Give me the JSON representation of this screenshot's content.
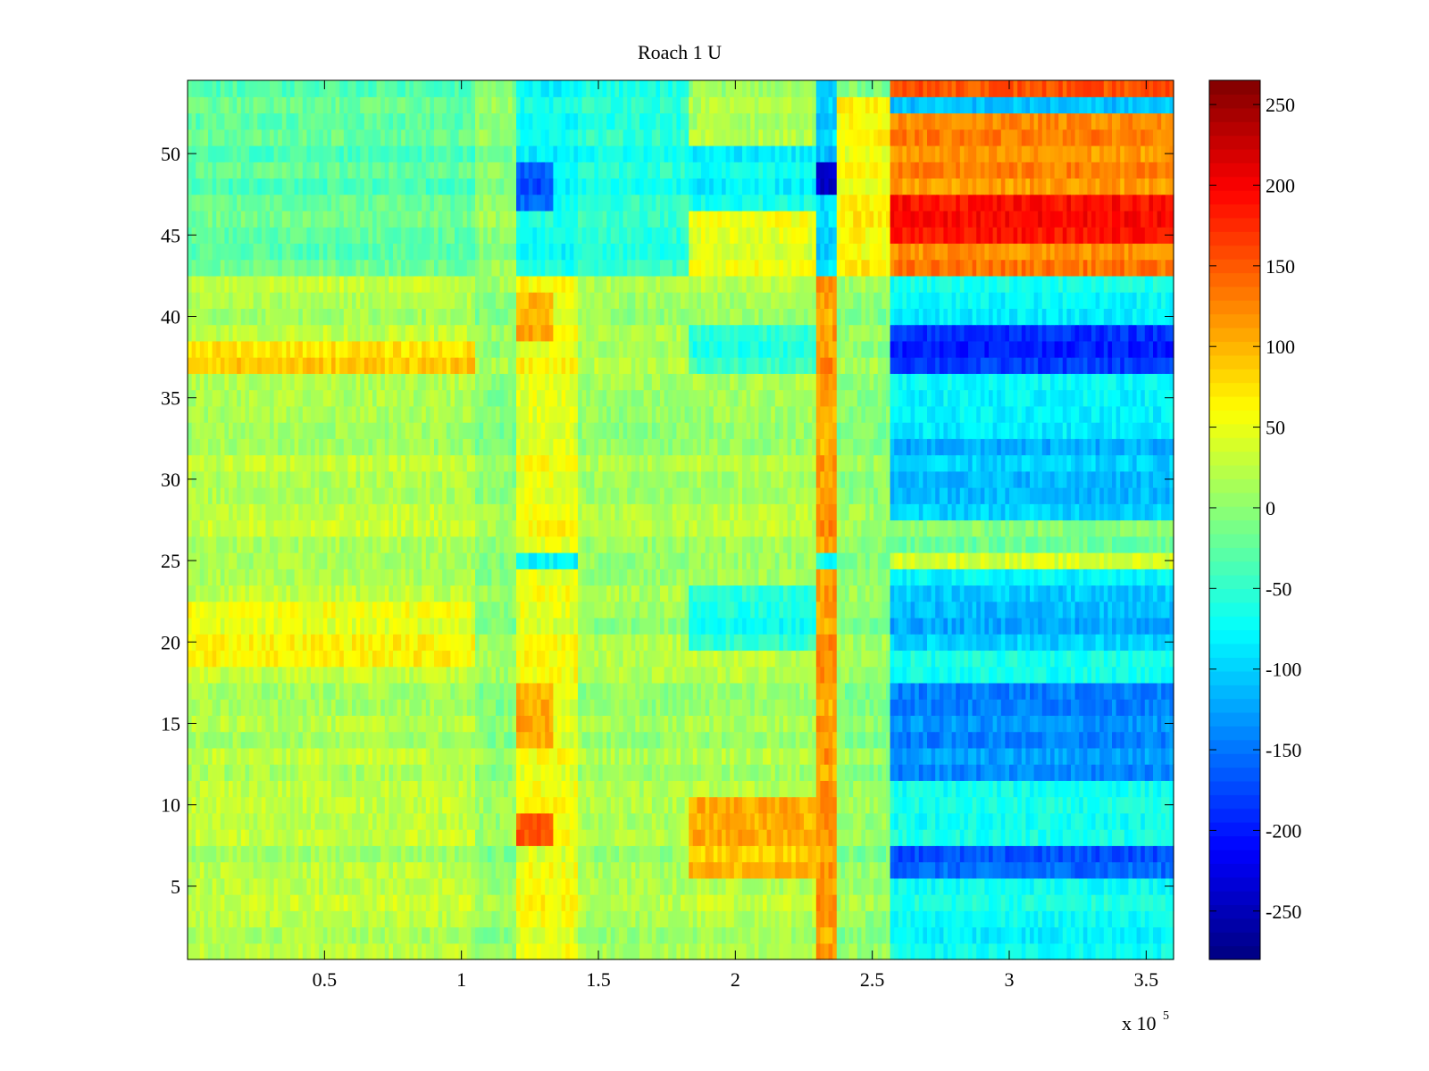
{
  "chart_data": {
    "type": "heatmap",
    "title": "Roach 1 U",
    "xlabel": "",
    "ylabel": "",
    "x_multiplier": "x 10",
    "x_multiplier_exponent": "5",
    "xlim": [
      0,
      3.6
    ],
    "ylim": [
      0.5,
      54.5
    ],
    "rows": 54,
    "x_ticks": [
      "0.5",
      "1",
      "1.5",
      "2",
      "2.5",
      "3",
      "3.5"
    ],
    "x_tick_values": [
      0.5,
      1,
      1.5,
      2,
      2.5,
      3,
      3.5
    ],
    "y_ticks": [
      "5",
      "10",
      "15",
      "20",
      "25",
      "30",
      "35",
      "40",
      "45",
      "50"
    ],
    "y_tick_values": [
      5,
      10,
      15,
      20,
      25,
      30,
      35,
      40,
      45,
      50
    ],
    "colorbar": {
      "range": [
        -280,
        265
      ],
      "ticks": [
        "-250",
        "-200",
        "-150",
        "-100",
        "-50",
        "0",
        "50",
        "100",
        "150",
        "200",
        "250"
      ],
      "tick_values": [
        -250,
        -200,
        -150,
        -100,
        -50,
        0,
        50,
        100,
        150,
        200,
        250
      ],
      "colormap": "jet"
    },
    "segments": [
      {
        "x": [
          0,
          1.05
        ],
        "base": 20
      },
      {
        "x": [
          1.05,
          1.2
        ],
        "base": 0
      },
      {
        "x": [
          1.2,
          1.43
        ],
        "base": 50
      },
      {
        "x": [
          1.43,
          1.83
        ],
        "base": 10
      },
      {
        "x": [
          1.83,
          2.3
        ],
        "base": 15
      },
      {
        "x": [
          2.3,
          2.37
        ],
        "base": 110
      },
      {
        "x": [
          2.37,
          2.57
        ],
        "base": 0
      },
      {
        "x": [
          2.57,
          3.6
        ],
        "base": -75
      }
    ],
    "features": [
      {
        "x": [
          0,
          1.05
        ],
        "y": [
          37,
          38
        ],
        "value": 75
      },
      {
        "x": [
          0,
          1.05
        ],
        "y": [
          19,
          22
        ],
        "value": 55
      },
      {
        "x": [
          0,
          1.05
        ],
        "y": [
          43,
          54
        ],
        "value": -25
      },
      {
        "x": [
          1.2,
          1.43
        ],
        "y": [
          42.5,
          54
        ],
        "value": -70
      },
      {
        "x": [
          1.2,
          1.33
        ],
        "y": [
          47,
          49
        ],
        "value": -160
      },
      {
        "x": [
          1.2,
          1.33
        ],
        "y": [
          8,
          9.5
        ],
        "value": 140
      },
      {
        "x": [
          1.2,
          1.33
        ],
        "y": [
          14,
          17
        ],
        "value": 110
      },
      {
        "x": [
          1.2,
          1.33
        ],
        "y": [
          38.5,
          41.5
        ],
        "value": 100
      },
      {
        "x": [
          1.2,
          1.43
        ],
        "y": [
          24.5,
          25.5
        ],
        "value": -70
      },
      {
        "x": [
          1.43,
          1.83
        ],
        "y": [
          42.5,
          54
        ],
        "value": -55
      },
      {
        "x": [
          1.83,
          2.3
        ],
        "y": [
          42.5,
          47
        ],
        "value": 45
      },
      {
        "x": [
          1.83,
          2.3
        ],
        "y": [
          47,
          50
        ],
        "value": -70
      },
      {
        "x": [
          1.83,
          2.3
        ],
        "y": [
          6,
          10
        ],
        "value": 95
      },
      {
        "x": [
          1.83,
          2.3
        ],
        "y": [
          37,
          39
        ],
        "value": -60
      },
      {
        "x": [
          1.83,
          2.3
        ],
        "y": [
          20,
          23
        ],
        "value": -60
      },
      {
        "x": [
          2.3,
          2.37
        ],
        "y": [
          42.5,
          54
        ],
        "value": -100
      },
      {
        "x": [
          2.3,
          2.37
        ],
        "y": [
          47.5,
          49.5
        ],
        "value": -230
      },
      {
        "x": [
          2.3,
          2.37
        ],
        "y": [
          24.5,
          25.5
        ],
        "value": -60
      },
      {
        "x": [
          2.37,
          2.57
        ],
        "y": [
          42.5,
          53
        ],
        "value": 60
      },
      {
        "x": [
          2.57,
          3.6
        ],
        "y": [
          42.5,
          53
        ],
        "value": 125
      },
      {
        "x": [
          2.57,
          3.6
        ],
        "y": [
          44.5,
          47.5
        ],
        "value": 185
      },
      {
        "x": [
          2.57,
          3.6
        ],
        "y": [
          53,
          54.5
        ],
        "value": 160
      },
      {
        "x": [
          2.57,
          3.6
        ],
        "y": [
          52.5,
          53.5
        ],
        "value": -115
      },
      {
        "x": [
          2.57,
          3.6
        ],
        "y": [
          36.5,
          39.5
        ],
        "value": -195
      },
      {
        "x": [
          2.57,
          3.6
        ],
        "y": [
          24.5,
          25.5
        ],
        "value": 45
      },
      {
        "x": [
          2.57,
          3.6
        ],
        "y": [
          26,
          27
        ],
        "value": -15
      },
      {
        "x": [
          2.57,
          3.6
        ],
        "y": [
          12,
          17
        ],
        "value": -135
      },
      {
        "x": [
          2.57,
          3.6
        ],
        "y": [
          5.5,
          7
        ],
        "value": -160
      },
      {
        "x": [
          2.57,
          3.6
        ],
        "y": [
          27.5,
          32
        ],
        "value": -110
      },
      {
        "x": [
          2.57,
          3.6
        ],
        "y": [
          19.5,
          23.5
        ],
        "value": -110
      }
    ]
  }
}
